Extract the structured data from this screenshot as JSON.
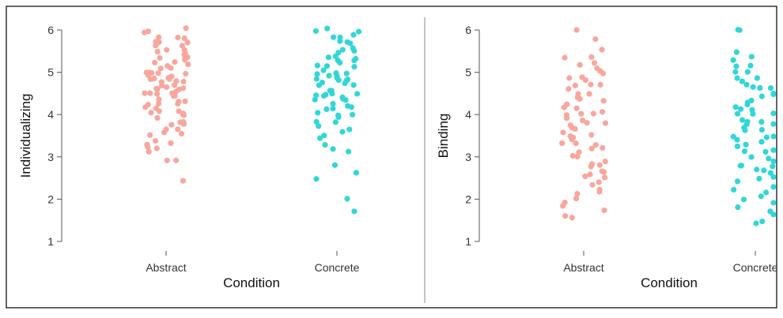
{
  "colors": {
    "abstract": "#f9a69c",
    "concrete": "#32d6d9",
    "axis": "#555555",
    "text": "#333333"
  },
  "chart_data": [
    {
      "type": "scatter",
      "subtype": "jitter-strip",
      "xlabel": "Condition",
      "ylabel": "Individualizing",
      "categories": [
        "Abstract",
        "Concrete"
      ],
      "ylim": [
        1,
        6
      ],
      "yticks": [
        "1",
        "2",
        "3",
        "4",
        "5",
        "6"
      ],
      "grid": false,
      "series": [
        {
          "category": "Abstract",
          "color": "#f9a69c",
          "values": [
            6.0,
            6.0,
            5.9,
            5.83,
            5.83,
            5.8,
            5.75,
            5.67,
            5.67,
            5.6,
            5.6,
            5.5,
            5.5,
            5.5,
            5.5,
            5.4,
            5.4,
            5.33,
            5.33,
            5.3,
            5.25,
            5.2,
            5.17,
            5.17,
            5.1,
            5.1,
            5.0,
            5.0,
            5.0,
            5.0,
            4.95,
            4.9,
            4.9,
            4.83,
            4.83,
            4.83,
            4.8,
            4.8,
            4.75,
            4.75,
            4.7,
            4.67,
            4.67,
            4.67,
            4.6,
            4.6,
            4.6,
            4.5,
            4.5,
            4.5,
            4.5,
            4.5,
            4.4,
            4.4,
            4.33,
            4.33,
            4.33,
            4.3,
            4.25,
            4.2,
            4.17,
            4.17,
            4.1,
            4.1,
            4.0,
            4.0,
            4.0,
            4.0,
            3.9,
            3.83,
            3.83,
            3.8,
            3.75,
            3.67,
            3.67,
            3.6,
            3.5,
            3.5,
            3.4,
            3.33,
            3.33,
            3.2,
            3.17,
            3.1,
            2.9,
            2.9,
            2.42
          ]
        },
        {
          "category": "Concrete",
          "color": "#32d6d9",
          "values": [
            6.0,
            6.0,
            6.0,
            5.9,
            5.83,
            5.8,
            5.75,
            5.67,
            5.67,
            5.6,
            5.5,
            5.5,
            5.5,
            5.4,
            5.33,
            5.33,
            5.3,
            5.25,
            5.2,
            5.17,
            5.17,
            5.1,
            5.0,
            5.0,
            5.0,
            5.0,
            4.95,
            4.9,
            4.9,
            4.83,
            4.83,
            4.8,
            4.8,
            4.75,
            4.7,
            4.67,
            4.67,
            4.6,
            4.6,
            4.5,
            4.5,
            4.5,
            4.5,
            4.4,
            4.4,
            4.33,
            4.33,
            4.3,
            4.25,
            4.2,
            4.17,
            4.17,
            4.1,
            4.0,
            4.0,
            4.0,
            3.9,
            3.83,
            3.8,
            3.75,
            3.67,
            3.6,
            3.5,
            3.4,
            3.3,
            3.17,
            3.17,
            2.83,
            2.67,
            2.5,
            2.0,
            1.67
          ]
        }
      ]
    },
    {
      "type": "scatter",
      "subtype": "jitter-strip",
      "xlabel": "Condition",
      "ylabel": "Binding",
      "categories": [
        "Abstract",
        "Concrete"
      ],
      "ylim": [
        1,
        6
      ],
      "yticks": [
        "1",
        "2",
        "3",
        "4",
        "5",
        "6"
      ],
      "grid": false,
      "series": [
        {
          "category": "Abstract",
          "color": "#f9a69c",
          "values": [
            6.0,
            5.75,
            5.5,
            5.4,
            5.33,
            5.25,
            5.17,
            5.1,
            5.0,
            5.0,
            4.9,
            4.83,
            4.83,
            4.75,
            4.67,
            4.67,
            4.6,
            4.5,
            4.5,
            4.4,
            4.33,
            4.33,
            4.25,
            4.2,
            4.17,
            4.1,
            4.0,
            4.0,
            4.0,
            3.9,
            3.83,
            3.83,
            3.8,
            3.75,
            3.67,
            3.67,
            3.6,
            3.5,
            3.5,
            3.5,
            3.4,
            3.33,
            3.33,
            3.25,
            3.17,
            3.17,
            3.1,
            3.0,
            3.0,
            2.9,
            2.83,
            2.83,
            2.75,
            2.67,
            2.67,
            2.6,
            2.5,
            2.5,
            2.4,
            2.33,
            2.25,
            2.17,
            2.1,
            2.0,
            1.9,
            1.83,
            1.75,
            1.6,
            1.55
          ]
        },
        {
          "category": "Concrete",
          "color": "#32d6d9",
          "values": [
            6.0,
            6.0,
            5.5,
            5.4,
            5.25,
            5.17,
            5.1,
            5.0,
            5.0,
            4.9,
            4.83,
            4.83,
            4.75,
            4.67,
            4.67,
            4.6,
            4.5,
            4.5,
            4.4,
            4.33,
            4.33,
            4.25,
            4.2,
            4.17,
            4.1,
            4.0,
            4.0,
            4.0,
            3.9,
            3.83,
            3.83,
            3.8,
            3.75,
            3.67,
            3.67,
            3.6,
            3.5,
            3.5,
            3.5,
            3.4,
            3.33,
            3.33,
            3.25,
            3.17,
            3.17,
            3.1,
            3.0,
            3.0,
            2.9,
            2.83,
            2.83,
            2.75,
            2.67,
            2.67,
            2.6,
            2.5,
            2.5,
            2.4,
            2.33,
            2.25,
            2.17,
            2.1,
            2.0,
            1.9,
            1.83,
            1.75,
            1.6,
            1.5,
            1.45
          ]
        }
      ]
    }
  ]
}
